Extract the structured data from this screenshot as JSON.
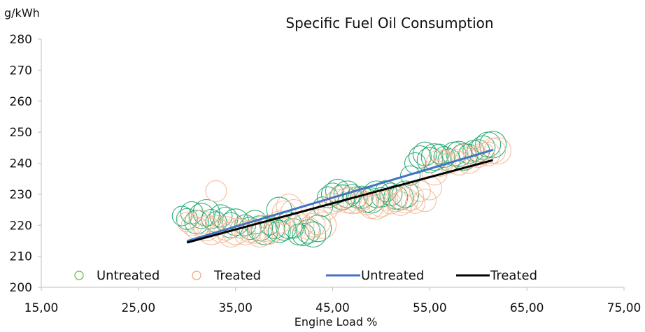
{
  "chart_data": {
    "type": "scatter",
    "title": "Specific Fuel Oil Consumption",
    "ylabel": "g/kWh",
    "xlabel": "Engine Load %",
    "xlim": [
      15,
      75
    ],
    "ylim": [
      200,
      280
    ],
    "x_ticks": [
      "15,00",
      "25,00",
      "35,00",
      "45,00",
      "55,00",
      "65,00",
      "75,00"
    ],
    "y_ticks": [
      "200",
      "210",
      "220",
      "230",
      "240",
      "250",
      "260",
      "270",
      "280"
    ],
    "grid": false,
    "legend_position": "bottom-inside",
    "series": [
      {
        "name": "Untreated",
        "kind": "scatter",
        "color": "#1aa66a",
        "legend_color": "#6cc24a",
        "points": [
          [
            29.5,
            223
          ],
          [
            30,
            222
          ],
          [
            30.5,
            224
          ],
          [
            31,
            221
          ],
          [
            31.5,
            223
          ],
          [
            32,
            224
          ],
          [
            32.5,
            222
          ],
          [
            33,
            221
          ],
          [
            33.5,
            223
          ],
          [
            34,
            222
          ],
          [
            34.5,
            220
          ],
          [
            35,
            221
          ],
          [
            35.5,
            219
          ],
          [
            36,
            220
          ],
          [
            36.5,
            219
          ],
          [
            37,
            221
          ],
          [
            37.5,
            219
          ],
          [
            38,
            218
          ],
          [
            38.5,
            220
          ],
          [
            39,
            219
          ],
          [
            39.5,
            218
          ],
          [
            40,
            219
          ],
          [
            39.5,
            225
          ],
          [
            40.5,
            220
          ],
          [
            41,
            219
          ],
          [
            41.5,
            217
          ],
          [
            42,
            217
          ],
          [
            42.5,
            218
          ],
          [
            43,
            217
          ],
          [
            43.5,
            219
          ],
          [
            44,
            226
          ],
          [
            44.5,
            229
          ],
          [
            45,
            230
          ],
          [
            45.5,
            231
          ],
          [
            46,
            229
          ],
          [
            46.5,
            230
          ],
          [
            47,
            230
          ],
          [
            47.5,
            229
          ],
          [
            48,
            229
          ],
          [
            48.5,
            228
          ],
          [
            49,
            228
          ],
          [
            49.5,
            230
          ],
          [
            50,
            229
          ],
          [
            50.5,
            231
          ],
          [
            51,
            230
          ],
          [
            51.5,
            229
          ],
          [
            52,
            229
          ],
          [
            52.5,
            230
          ],
          [
            53,
            236
          ],
          [
            53.5,
            240
          ],
          [
            54,
            242
          ],
          [
            54.5,
            243
          ],
          [
            55,
            241
          ],
          [
            55.5,
            242
          ],
          [
            56,
            243
          ],
          [
            56.5,
            242
          ],
          [
            57,
            241
          ],
          [
            57.5,
            243
          ],
          [
            58,
            243
          ],
          [
            58.5,
            242
          ],
          [
            59,
            243
          ],
          [
            59.5,
            244
          ],
          [
            60,
            244
          ],
          [
            60.5,
            245
          ],
          [
            61,
            246
          ],
          [
            61.5,
            246
          ]
        ]
      },
      {
        "name": "Treated",
        "kind": "scatter",
        "color": "#f2b896",
        "legend_color": "#f4a97d",
        "points": [
          [
            30,
            221
          ],
          [
            30.5,
            220
          ],
          [
            31,
            219
          ],
          [
            31.5,
            221
          ],
          [
            32,
            219
          ],
          [
            32.5,
            218
          ],
          [
            33,
            220
          ],
          [
            33,
            231
          ],
          [
            33.5,
            218
          ],
          [
            34,
            219
          ],
          [
            34.5,
            217
          ],
          [
            35,
            218
          ],
          [
            35.5,
            219
          ],
          [
            36,
            217
          ],
          [
            36.5,
            218
          ],
          [
            37,
            218
          ],
          [
            37.5,
            217
          ],
          [
            38,
            219
          ],
          [
            38.5,
            217
          ],
          [
            39,
            218
          ],
          [
            39.5,
            221
          ],
          [
            40,
            224
          ],
          [
            40.5,
            226
          ],
          [
            41,
            224
          ],
          [
            41.5,
            221
          ],
          [
            42,
            220
          ],
          [
            42.5,
            219
          ],
          [
            43,
            220
          ],
          [
            43.5,
            221
          ],
          [
            44,
            220
          ],
          [
            44.5,
            225
          ],
          [
            45,
            227
          ],
          [
            45.5,
            228
          ],
          [
            46,
            229
          ],
          [
            46.5,
            228
          ],
          [
            47,
            228
          ],
          [
            47.5,
            227
          ],
          [
            48,
            228
          ],
          [
            48.5,
            227
          ],
          [
            49,
            226
          ],
          [
            49.5,
            226
          ],
          [
            50,
            227
          ],
          [
            50.5,
            228
          ],
          [
            51,
            227
          ],
          [
            51.5,
            228
          ],
          [
            52,
            227
          ],
          [
            52.5,
            228
          ],
          [
            53,
            229
          ],
          [
            53.5,
            227
          ],
          [
            54,
            231
          ],
          [
            54.5,
            228
          ],
          [
            55,
            232
          ],
          [
            55.5,
            237
          ],
          [
            56,
            240
          ],
          [
            56.5,
            241
          ],
          [
            57,
            240
          ],
          [
            57.5,
            241
          ],
          [
            58,
            240
          ],
          [
            58.5,
            242
          ],
          [
            59,
            241
          ],
          [
            59.5,
            242
          ],
          [
            60,
            242
          ],
          [
            60.5,
            243
          ],
          [
            61,
            243
          ],
          [
            61.5,
            244
          ],
          [
            62,
            244
          ]
        ]
      },
      {
        "name": "Untreated",
        "kind": "trendline",
        "color": "#4472c4",
        "x": [
          30,
          61.5
        ],
        "y": [
          214.9,
          244.3
        ]
      },
      {
        "name": "Treated",
        "kind": "trendline",
        "color": "#000000",
        "x": [
          30,
          61.5
        ],
        "y": [
          214.4,
          241.0
        ]
      }
    ]
  }
}
